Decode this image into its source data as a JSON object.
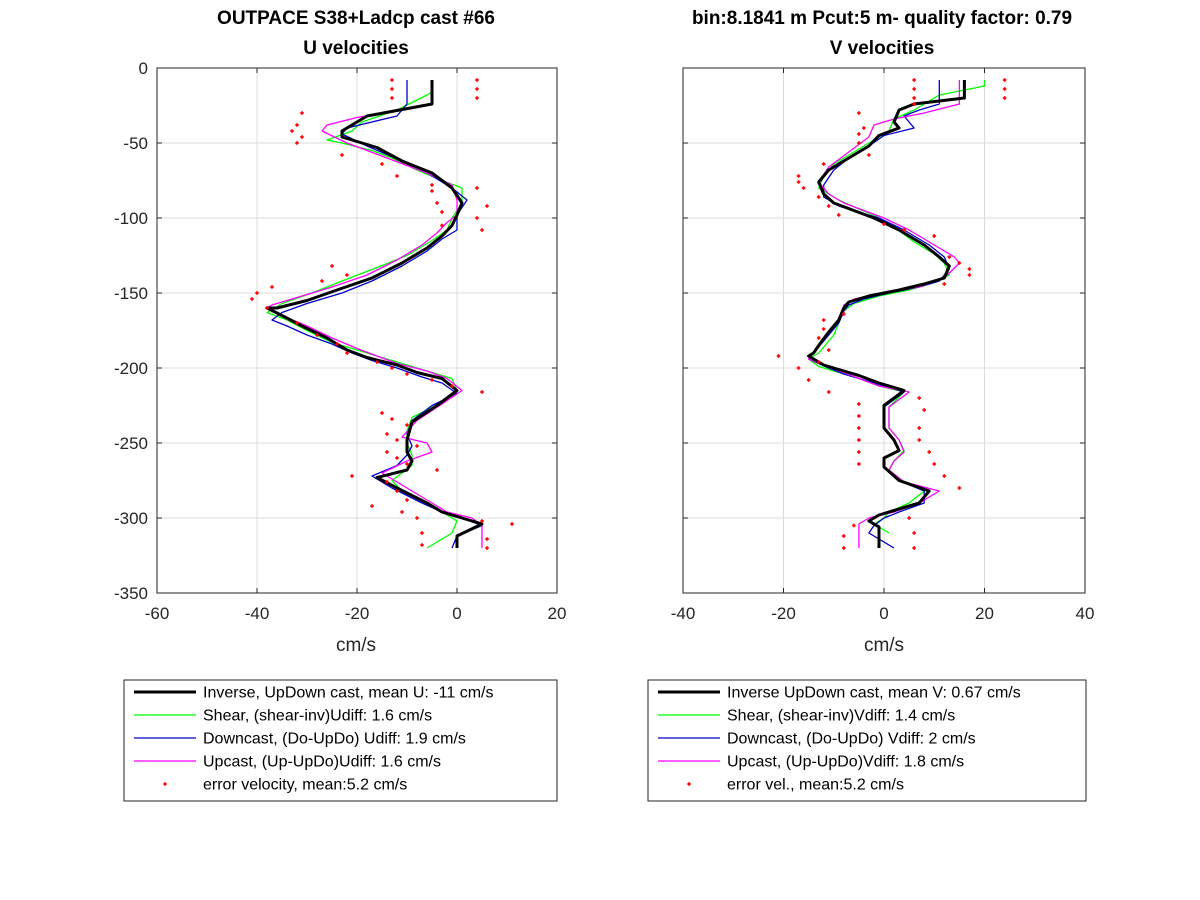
{
  "chart_data": [
    {
      "type": "line",
      "title": "OUTPACE S38+Ladcp cast #66",
      "subtitle": "U velocities",
      "xlabel": "cm/s",
      "ylabel": "",
      "xlim": [
        -60,
        20
      ],
      "ylim": [
        -350,
        0
      ],
      "xticks": [
        "-60",
        "-40",
        "-20",
        "0",
        "20"
      ],
      "yticks": [
        "0",
        "-50",
        "-100",
        "-150",
        "-200",
        "-250",
        "-300",
        "-350"
      ],
      "grid": true,
      "legend_position": "below",
      "legend": [
        "Inverse, UpDown cast, mean U:  -11 cm/s",
        "Shear, (shear-inv)Udiff:  1.6 cm/s",
        "Downcast, (Do-UpDo) Udiff:  1.9 cm/s",
        "Upcast, (Up-UpDo)Udiff:  1.6 cm/s",
        "error velocity, mean:5.2 cm/s"
      ],
      "series": [
        {
          "label": "Inverse",
          "color": "#000000",
          "width": 3,
          "x": [
            -5,
            -5,
            -18,
            -23,
            -23,
            -16,
            -11,
            -5,
            -1,
            1,
            0,
            -1,
            -3,
            -6,
            -11,
            -17,
            -24,
            -30,
            -36,
            -38,
            -35,
            -31,
            -26,
            -22,
            -18,
            -12,
            -8,
            -3,
            0,
            -4,
            -9,
            -10,
            -10,
            -9,
            -10,
            -16,
            -12,
            -6,
            -3,
            1,
            5,
            0,
            0
          ],
          "y": [
            -8,
            -24,
            -32,
            -42,
            -46,
            -53,
            -62,
            -70,
            -80,
            -90,
            -98,
            -105,
            -112,
            -120,
            -130,
            -140,
            -148,
            -155,
            -160,
            -160,
            -165,
            -172,
            -180,
            -188,
            -193,
            -198,
            -203,
            -207,
            -215,
            -225,
            -236,
            -248,
            -256,
            -262,
            -268,
            -273,
            -280,
            -290,
            -296,
            -300,
            -304,
            -312,
            -320
          ]
        },
        {
          "label": "Shear",
          "color": "#00ff00",
          "width": 1.3,
          "x": [
            -5,
            -5,
            -6,
            -12,
            -19,
            -21,
            -26,
            -23,
            -17,
            -13,
            -8,
            -3,
            1,
            1,
            0,
            -1,
            -2,
            -5,
            -10,
            -16,
            -23,
            -29,
            -35,
            -38,
            -34,
            -30,
            -25,
            -20,
            -16,
            -11,
            -6,
            -1,
            0,
            -3,
            -9,
            -10,
            -10,
            -9,
            -9,
            -13,
            -11,
            -6,
            -2,
            0,
            -1,
            -6
          ],
          "y": [
            -8,
            -16,
            -18,
            -28,
            -36,
            -42,
            -48,
            -50,
            -55,
            -60,
            -68,
            -75,
            -80,
            -90,
            -95,
            -100,
            -108,
            -115,
            -125,
            -133,
            -142,
            -150,
            -157,
            -163,
            -168,
            -175,
            -183,
            -188,
            -192,
            -197,
            -202,
            -207,
            -215,
            -223,
            -233,
            -242,
            -250,
            -258,
            -265,
            -275,
            -282,
            -290,
            -298,
            -302,
            -310,
            -320
          ]
        },
        {
          "label": "Downcast",
          "color": "#0000cc",
          "width": 1.3,
          "x": [
            -10,
            -10,
            -12,
            -22,
            -23,
            -18,
            -11,
            -6,
            -1,
            2,
            0,
            0,
            -3,
            -6,
            -11,
            -17,
            -23,
            -30,
            -35,
            -37,
            -34,
            -30,
            -25,
            -21,
            -17,
            -12,
            -7,
            -3,
            0,
            -5,
            -9,
            -10,
            -9,
            -10,
            -12,
            -17,
            -13,
            -7,
            -3,
            1,
            5,
            0,
            -1
          ],
          "y": [
            -8,
            -24,
            -32,
            -40,
            -44,
            -52,
            -62,
            -70,
            -80,
            -88,
            -98,
            -108,
            -114,
            -122,
            -132,
            -142,
            -150,
            -157,
            -163,
            -168,
            -172,
            -178,
            -184,
            -190,
            -195,
            -200,
            -206,
            -210,
            -217,
            -225,
            -235,
            -244,
            -252,
            -258,
            -265,
            -272,
            -280,
            -290,
            -296,
            -300,
            -305,
            -312,
            -320
          ]
        },
        {
          "label": "Upcast",
          "color": "#ff00ff",
          "width": 1.3,
          "x": [
            -5,
            -5,
            -20,
            -26,
            -27,
            -22,
            -14,
            -6,
            -1,
            0,
            0,
            -2,
            -4,
            -7,
            -12,
            -18,
            -25,
            -32,
            -37,
            -38,
            -35,
            -30,
            -25,
            -20,
            -16,
            -12,
            -6,
            -2,
            1,
            -3,
            -8,
            -11,
            -6,
            -5,
            -10,
            -15,
            -10,
            -5,
            -2,
            3,
            5,
            5,
            5
          ],
          "y": [
            -8,
            -24,
            -33,
            -38,
            -42,
            -50,
            -60,
            -70,
            -78,
            -88,
            -98,
            -103,
            -110,
            -118,
            -128,
            -138,
            -146,
            -153,
            -158,
            -160,
            -165,
            -172,
            -180,
            -187,
            -192,
            -197,
            -202,
            -207,
            -215,
            -224,
            -235,
            -246,
            -250,
            -256,
            -262,
            -270,
            -280,
            -290,
            -296,
            -300,
            -305,
            -312,
            -320
          ]
        }
      ],
      "error_velocity": {
        "label": "error velocity",
        "color": "#ff0000",
        "x": [
          -13,
          4,
          -13,
          4,
          -13,
          4,
          -31,
          -32,
          -33,
          -31,
          -32,
          -23,
          -15,
          -12,
          -5,
          4,
          -5,
          -4,
          6,
          -3,
          4,
          -3,
          5,
          -25,
          -22,
          -27,
          -37,
          -40,
          -41,
          -38,
          -32,
          -28,
          -24,
          -22,
          -16,
          -13,
          -10,
          -5,
          -1,
          5,
          -15,
          -13,
          -10,
          -14,
          -12,
          -8,
          -14,
          -12,
          -10,
          -4,
          -14,
          -12,
          -10,
          -21,
          -17,
          -11,
          -8,
          5,
          11,
          -7,
          6,
          -7,
          6
        ],
        "y": [
          -8,
          -8,
          -14,
          -14,
          -20,
          -20,
          -30,
          -38,
          -42,
          -46,
          -50,
          -58,
          -64,
          -72,
          -78,
          -80,
          -82,
          -90,
          -92,
          -96,
          -100,
          -105,
          -108,
          -132,
          -138,
          -142,
          -146,
          -150,
          -154,
          -160,
          -170,
          -178,
          -184,
          -190,
          -196,
          -200,
          -204,
          -208,
          -212,
          -216,
          -230,
          -234,
          -238,
          -244,
          -248,
          -252,
          -256,
          -260,
          -264,
          -268,
          -276,
          -282,
          -288,
          -272,
          -292,
          -296,
          -300,
          -302,
          -304,
          -310,
          -314,
          -318,
          -320
        ]
      }
    },
    {
      "type": "line",
      "title": "bin:8.1841 m  Pcut:5 m- quality factor:  0.79",
      "subtitle": "V velocities",
      "xlabel": "cm/s",
      "ylabel": "",
      "xlim": [
        -40,
        40
      ],
      "ylim": [
        -350,
        0
      ],
      "xticks": [
        "-40",
        "-20",
        "0",
        "20",
        "40"
      ],
      "grid": true,
      "legend_position": "below",
      "legend": [
        "Inverse UpDown cast, mean V:  0.67 cm/s",
        "Shear, (shear-inv)Vdiff:  1.4 cm/s",
        "Downcast, (Do-UpDo) Vdiff:  2 cm/s",
        "Upcast, (Up-UpDo)Vdiff:  1.8 cm/s",
        "error vel., mean:5.2 cm/s"
      ],
      "series": [
        {
          "label": "Inverse",
          "color": "#000000",
          "width": 3,
          "x": [
            16,
            16,
            6,
            3,
            2,
            3,
            -1,
            -3,
            -7,
            -11,
            -13,
            -12,
            -10,
            -6,
            -2,
            3,
            8,
            11,
            13,
            12,
            8,
            3,
            -3,
            -7,
            -8,
            -9,
            -11,
            -13,
            -14,
            -15,
            -12,
            -8,
            -5,
            -1,
            4,
            0,
            0,
            2,
            3,
            0,
            0,
            3,
            9,
            7,
            2,
            -1,
            -3,
            -1,
            -1
          ],
          "y": [
            -8,
            -20,
            -24,
            -28,
            -36,
            -40,
            -45,
            -52,
            -60,
            -68,
            -76,
            -84,
            -90,
            -95,
            -100,
            -108,
            -118,
            -126,
            -132,
            -140,
            -144,
            -148,
            -152,
            -156,
            -160,
            -168,
            -176,
            -185,
            -190,
            -192,
            -198,
            -202,
            -205,
            -210,
            -215,
            -225,
            -240,
            -248,
            -255,
            -260,
            -266,
            -275,
            -282,
            -290,
            -295,
            -298,
            -302,
            -306,
            -320
          ]
        },
        {
          "label": "Shear",
          "color": "#00ff00",
          "width": 1.3,
          "x": [
            20,
            20,
            11,
            9,
            6,
            2,
            1,
            -2,
            -6,
            -10,
            -12,
            -13,
            -9,
            -5,
            -2,
            2,
            6,
            10,
            12,
            13,
            10,
            5,
            -1,
            -6,
            -8,
            -9,
            -10,
            -12,
            -13,
            -15,
            -13,
            -9,
            -5,
            -1,
            4,
            1,
            1,
            3,
            4,
            2,
            1,
            4,
            8,
            5,
            1,
            0,
            -2,
            1
          ],
          "y": [
            -8,
            -12,
            -18,
            -22,
            -28,
            -34,
            -42,
            -48,
            -56,
            -64,
            -72,
            -80,
            -88,
            -94,
            -98,
            -106,
            -116,
            -124,
            -130,
            -138,
            -143,
            -148,
            -152,
            -157,
            -162,
            -170,
            -178,
            -186,
            -190,
            -194,
            -199,
            -203,
            -207,
            -212,
            -216,
            -226,
            -240,
            -248,
            -255,
            -262,
            -268,
            -276,
            -282,
            -290,
            -296,
            -300,
            -304,
            -310
          ]
        },
        {
          "label": "Downcast",
          "color": "#0000cc",
          "width": 1.3,
          "x": [
            11,
            11,
            7,
            4,
            6,
            0,
            -3,
            -7,
            -10,
            -12,
            -12,
            -9,
            -5,
            -1,
            4,
            9,
            12,
            13,
            11,
            7,
            1,
            -4,
            -7,
            -8,
            -9,
            -11,
            -13,
            -14,
            -15,
            -11,
            -8,
            -4,
            0,
            4,
            0,
            0,
            2,
            3,
            0,
            0,
            3,
            8,
            8,
            3,
            0,
            -2,
            -3,
            2
          ],
          "y": [
            -8,
            -24,
            -28,
            -32,
            -40,
            -45,
            -52,
            -60,
            -68,
            -78,
            -86,
            -92,
            -96,
            -100,
            -108,
            -118,
            -126,
            -134,
            -142,
            -146,
            -150,
            -154,
            -158,
            -162,
            -170,
            -178,
            -186,
            -190,
            -194,
            -200,
            -204,
            -208,
            -212,
            -216,
            -226,
            -240,
            -248,
            -255,
            -260,
            -266,
            -275,
            -282,
            -290,
            -296,
            -300,
            -305,
            -310,
            -320
          ]
        },
        {
          "label": "Upcast",
          "color": "#ff00ff",
          "width": 1.3,
          "x": [
            15,
            15,
            8,
            2,
            -2,
            -3,
            -7,
            -11,
            -13,
            -11,
            -8,
            -4,
            0,
            5,
            10,
            14,
            15,
            12,
            7,
            0,
            -6,
            -8,
            -8,
            -10,
            -12,
            -13,
            -14,
            -15,
            -11,
            -8,
            -5,
            -1,
            5,
            1,
            1,
            3,
            4,
            2,
            1,
            4,
            11,
            7,
            2,
            -3,
            -5,
            -5
          ],
          "y": [
            -8,
            -24,
            -30,
            -34,
            -38,
            -46,
            -56,
            -66,
            -76,
            -84,
            -90,
            -95,
            -100,
            -108,
            -118,
            -126,
            -130,
            -140,
            -146,
            -150,
            -154,
            -158,
            -164,
            -172,
            -180,
            -186,
            -190,
            -194,
            -199,
            -203,
            -207,
            -212,
            -216,
            -226,
            -240,
            -248,
            -256,
            -262,
            -268,
            -276,
            -282,
            -290,
            -296,
            -300,
            -304,
            -320
          ]
        }
      ],
      "error_velocity": {
        "label": "error vel.",
        "color": "#ff0000",
        "x": [
          6,
          24,
          6,
          24,
          6,
          24,
          6,
          -5,
          -4,
          -5,
          -5,
          -3,
          -12,
          -17,
          -17,
          -16,
          -13,
          -11,
          -9,
          0,
          4,
          10,
          13,
          15,
          17,
          17,
          12,
          -8,
          -12,
          -12,
          -13,
          -11,
          -13,
          -21,
          -17,
          -15,
          -11,
          -5,
          -5,
          -5,
          -5,
          -5,
          -5,
          7,
          8,
          7,
          7,
          9,
          10,
          12,
          15,
          -6,
          5,
          -8,
          6,
          -8,
          6
        ],
        "y": [
          -8,
          -8,
          -14,
          -14,
          -20,
          -20,
          -24,
          -30,
          -40,
          -44,
          -50,
          -58,
          -64,
          -72,
          -76,
          -80,
          -86,
          -92,
          -98,
          -104,
          -108,
          -112,
          -126,
          -130,
          -134,
          -138,
          -144,
          -164,
          -168,
          -174,
          -180,
          -188,
          -196,
          -192,
          -200,
          -208,
          -216,
          -224,
          -232,
          -240,
          -248,
          -256,
          -264,
          -220,
          -228,
          -240,
          -248,
          -256,
          -264,
          -272,
          -280,
          -305,
          -300,
          -312,
          -310,
          -320,
          -320
        ]
      }
    }
  ]
}
